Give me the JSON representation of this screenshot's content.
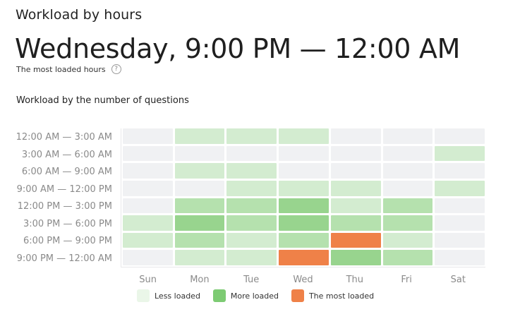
{
  "header": {
    "title": "Workload by hours",
    "headline": "Wednesday, 9:00 PM — 12:00 AM",
    "subline": "The most loaded hours",
    "help_icon": "?"
  },
  "section": {
    "title": "Workload by the number of questions"
  },
  "colors": {
    "empty": "#f0f1f3",
    "level1": "#d3ecd0",
    "level2": "#b5e1ae",
    "level3": "#98d48e",
    "most": "#ef8148",
    "legend_less": "#eaf6e8",
    "legend_more": "#7dcb73",
    "legend_most": "#ef8148"
  },
  "legend": {
    "less": "Less loaded",
    "more": "More loaded",
    "most": "The most loaded"
  },
  "chart_data": {
    "type": "heatmap",
    "title": "Workload by the number of questions",
    "xlabel": "",
    "ylabel": "",
    "x": [
      "Sun",
      "Mon",
      "Tue",
      "Wed",
      "Thu",
      "Fri",
      "Sat"
    ],
    "y": [
      "12:00 AM — 3:00 AM",
      "3:00 AM — 6:00 AM",
      "6:00 AM — 9:00 AM",
      "9:00 AM — 12:00 PM",
      "12:00 PM — 3:00 PM",
      "3:00 PM — 6:00 PM",
      "6:00 PM — 9:00 PM",
      "9:00 PM — 12:00 AM"
    ],
    "scale": "0 = no load, 1 = less loaded, 2-3 = more loaded, 4 = the most loaded",
    "values": [
      [
        0,
        1,
        1,
        1,
        0,
        0,
        0
      ],
      [
        0,
        0,
        0,
        0,
        0,
        0,
        1
      ],
      [
        0,
        1,
        1,
        0,
        0,
        0,
        0
      ],
      [
        0,
        0,
        1,
        1,
        1,
        0,
        1
      ],
      [
        0,
        2,
        2,
        3,
        1,
        2,
        0
      ],
      [
        1,
        3,
        2,
        3,
        2,
        2,
        0
      ],
      [
        1,
        2,
        1,
        2,
        4,
        1,
        0
      ],
      [
        0,
        1,
        1,
        4,
        3,
        2,
        0
      ]
    ],
    "legend": [
      "Less loaded",
      "More loaded",
      "The most loaded"
    ],
    "legend_position": "bottom"
  }
}
